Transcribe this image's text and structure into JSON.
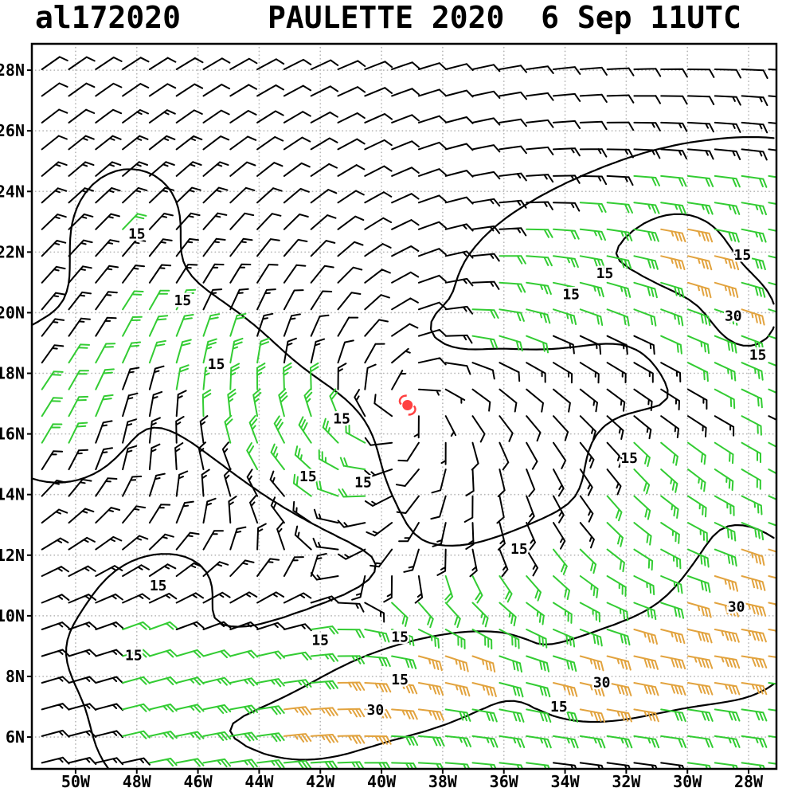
{
  "header": {
    "storm_id": "al172020",
    "title": "PAULETTE 2020  6 Sep 11UTC"
  },
  "chart_data": {
    "type": "wind_barb_map",
    "storm_id": "al172020",
    "storm_name": "PAULETTE",
    "year": "2020",
    "valid_time": "6 Sep 11UTC",
    "title": "al172020  PAULETTE 2020  6 Sep 11UTC",
    "lon_range": [
      -51.43,
      -27.09
    ],
    "lat_range": [
      4.95,
      28.87
    ],
    "grid_step_deg": 2,
    "grid_color": "#b8b8b8",
    "frame_color": "#000000",
    "x_axis": {
      "ticks": [
        {
          "lon": -50,
          "label": "50W"
        },
        {
          "lon": -48,
          "label": "48W"
        },
        {
          "lon": -46,
          "label": "46W"
        },
        {
          "lon": -44,
          "label": "44W"
        },
        {
          "lon": -42,
          "label": "42W"
        },
        {
          "lon": -40,
          "label": "40W"
        },
        {
          "lon": -38,
          "label": "38W"
        },
        {
          "lon": -36,
          "label": "36W"
        },
        {
          "lon": -34,
          "label": "34W"
        },
        {
          "lon": -32,
          "label": "32W"
        },
        {
          "lon": -30,
          "label": "30W"
        },
        {
          "lon": -28,
          "label": "28W"
        }
      ]
    },
    "y_axis": {
      "ticks": [
        {
          "lat": 28,
          "label": "28N"
        },
        {
          "lat": 26,
          "label": "26N"
        },
        {
          "lat": 24,
          "label": "24N"
        },
        {
          "lat": 22,
          "label": "22N"
        },
        {
          "lat": 20,
          "label": "20N"
        },
        {
          "lat": 18,
          "label": "18N"
        },
        {
          "lat": 16,
          "label": "16N"
        },
        {
          "lat": 14,
          "label": "14N"
        },
        {
          "lat": 12,
          "label": "12N"
        },
        {
          "lat": 10,
          "label": "10N"
        },
        {
          "lat": 8,
          "label": "8N"
        },
        {
          "lat": 6,
          "label": "6N"
        }
      ]
    },
    "contour_levels": [
      15,
      30
    ],
    "contour_unit": "kt",
    "contour_labels": [
      {
        "text": "15",
        "lon": -48.0,
        "lat": 22.6
      },
      {
        "text": "15",
        "lon": -46.5,
        "lat": 20.4
      },
      {
        "text": "15",
        "lon": -45.4,
        "lat": 18.3
      },
      {
        "text": "15",
        "lon": -41.3,
        "lat": 16.5
      },
      {
        "text": "15",
        "lon": -42.4,
        "lat": 14.6
      },
      {
        "text": "15",
        "lon": -40.6,
        "lat": 14.4
      },
      {
        "text": "15",
        "lon": -33.8,
        "lat": 20.6
      },
      {
        "text": "15",
        "lon": -32.7,
        "lat": 21.3
      },
      {
        "text": "15",
        "lon": -28.2,
        "lat": 21.9
      },
      {
        "text": "30",
        "lon": -28.5,
        "lat": 19.9
      },
      {
        "text": "15",
        "lon": -27.7,
        "lat": 18.6
      },
      {
        "text": "15",
        "lon": -31.9,
        "lat": 15.2
      },
      {
        "text": "15",
        "lon": -35.5,
        "lat": 12.2
      },
      {
        "text": "15",
        "lon": -47.3,
        "lat": 11.0
      },
      {
        "text": "15",
        "lon": -48.1,
        "lat": 8.7
      },
      {
        "text": "15",
        "lon": -42.0,
        "lat": 9.2
      },
      {
        "text": "15",
        "lon": -39.4,
        "lat": 9.3
      },
      {
        "text": "15",
        "lon": -39.4,
        "lat": 7.9
      },
      {
        "text": "30",
        "lon": -40.2,
        "lat": 6.9
      },
      {
        "text": "30",
        "lon": -32.8,
        "lat": 7.8
      },
      {
        "text": "15",
        "lon": -34.2,
        "lat": 7.0
      },
      {
        "text": "30",
        "lon": -28.4,
        "lat": 10.3
      }
    ],
    "barb_colors": {
      "low": "#000000",
      "mid": "#33cc33",
      "high": "#e2a33e"
    },
    "speed_thresholds_kt": [
      17.5,
      32.5
    ],
    "barb_speed_unit": "kt",
    "storm_marker": {
      "lon": -39.15,
      "lat": 16.95,
      "color": "#ff4040"
    },
    "barb_grid": {
      "lon_start": -51.1,
      "lon_step": 0.88,
      "cols": 28,
      "lat_start": 5.15,
      "lat_step": 0.88,
      "rows": 27
    },
    "wind_field": {
      "base_speed_kt": 12,
      "center": [
        -39.15,
        16.95
      ],
      "vortex_base": 0.25,
      "vortex_amp": 1.1,
      "vortex_scale": 7,
      "inflow": 0.55,
      "trade_lat": 15,
      "trade_span": 6,
      "bg_base": 0.35,
      "bg_amp": 0.65,
      "bg_tilt": 0.12,
      "blobs": [
        [
          -31.5,
          22.3,
          13,
          4.0,
          1.6,
          20
        ],
        [
          -30.3,
          21.9,
          10,
          1.2,
          1.2,
          0
        ],
        [
          -28.0,
          19.8,
          20,
          1.6,
          1.6,
          0
        ],
        [
          -44.5,
          17.3,
          11,
          3.5,
          1.3,
          -40
        ],
        [
          -42.3,
          15.2,
          8,
          2.5,
          1.0,
          -40
        ],
        [
          -50.6,
          17.0,
          7,
          2.0,
          2.0,
          0
        ],
        [
          -32.0,
          10.2,
          13,
          5.5,
          2.2,
          12
        ],
        [
          -29.3,
          8.7,
          15,
          2.5,
          1.2,
          25
        ],
        [
          -27.6,
          12.0,
          8,
          1.8,
          3.0,
          0
        ],
        [
          -28.0,
          10.4,
          8,
          1.3,
          1.3,
          0
        ],
        [
          -40.5,
          6.8,
          19,
          4.0,
          1.5,
          5
        ],
        [
          -42.8,
          5.8,
          8,
          1.5,
          0.8,
          0
        ],
        [
          -46.5,
          6.3,
          8,
          1.5,
          1.5,
          0
        ],
        [
          -38.5,
          9.0,
          7,
          3.0,
          1.0,
          10
        ],
        [
          -48.2,
          23.2,
          5,
          1.5,
          1.5,
          0
        ],
        [
          -41.3,
          16.3,
          7,
          1.3,
          0.9,
          -30
        ],
        [
          -47.5,
          10.7,
          5,
          1.8,
          1.2,
          20
        ],
        [
          -48.6,
          8.3,
          4,
          1.5,
          1.0,
          -20
        ],
        [
          -32.5,
          7.6,
          13,
          1.8,
          1.0,
          20
        ],
        [
          -30.5,
          14.5,
          8,
          2.0,
          1.2,
          -30
        ],
        [
          -34.8,
          20.8,
          6,
          2.2,
          1.0,
          30
        ],
        [
          -27.5,
          6.5,
          9,
          2.5,
          1.5,
          30
        ],
        [
          -37.6,
          19.4,
          6,
          0.8,
          0.5,
          0
        ],
        [
          -39.15,
          16.95,
          -7,
          2.5,
          2.5,
          0
        ]
      ]
    }
  }
}
